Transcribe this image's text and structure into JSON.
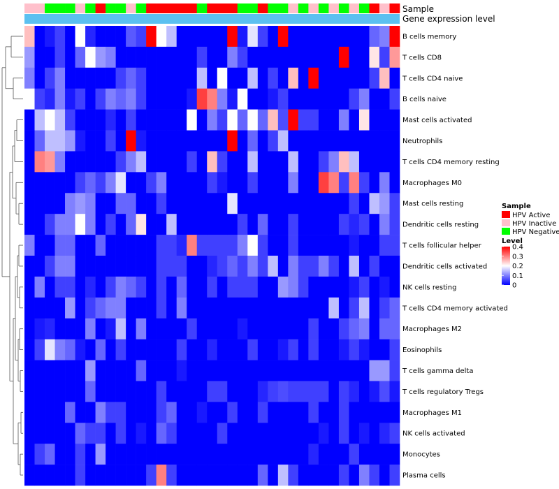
{
  "chart_data": {
    "type": "heatmap",
    "title": "",
    "annotations": {
      "sample_label": "Sample",
      "gene_label": "Gene expression level"
    },
    "colors": {
      "hpv_active": "#ff0000",
      "hpv_inactive": "#ffc0cb",
      "hpv_negative": "#00ff00",
      "gene_bar": "#5bc0f0",
      "low": "#0000ff",
      "mid": "#ffffff",
      "high": "#ff0000"
    },
    "legend": {
      "position": "right",
      "sample_title": "Sample",
      "sample_items": [
        {
          "label": "HPV Active",
          "key": "A"
        },
        {
          "label": "HPV Inactive",
          "key": "I"
        },
        {
          "label": "HPV Negative",
          "key": "N"
        }
      ],
      "level_title": "Level",
      "level_ticks": [
        {
          "value": 0.4,
          "label": "0.4"
        },
        {
          "value": 0.3,
          "label": "0.3"
        },
        {
          "value": 0.2,
          "label": "0.2"
        },
        {
          "value": 0.1,
          "label": "0.1"
        },
        {
          "value": 0,
          "label": "0"
        }
      ],
      "range": [
        0,
        0.4
      ]
    },
    "sample_groups": [
      "I",
      "I",
      "N",
      "N",
      "N",
      "I",
      "N",
      "A",
      "N",
      "N",
      "I",
      "N",
      "A",
      "A",
      "A",
      "A",
      "A",
      "N",
      "A",
      "A",
      "A",
      "N",
      "N",
      "A",
      "N",
      "N",
      "I",
      "N",
      "I",
      "N",
      "I",
      "N",
      "I",
      "N",
      "A",
      "I",
      "A"
    ],
    "rows": [
      {
        "label": "B cells memory",
        "values": [
          0.25,
          0,
          0.02,
          0.05,
          0,
          0.2,
          0.03,
          0,
          0,
          0,
          0.07,
          0.05,
          0.4,
          0.2,
          0.15,
          0,
          0,
          0,
          0,
          0,
          0.4,
          0.02,
          0.18,
          0.05,
          0,
          0.4,
          0,
          0,
          0,
          0,
          0,
          0,
          0,
          0,
          0.08,
          0.1,
          0.4
        ]
      },
      {
        "label": "T cells CD8",
        "values": [
          0.12,
          0,
          0,
          0.05,
          0,
          0.08,
          0.2,
          0.12,
          0.1,
          0,
          0,
          0,
          0,
          0,
          0,
          0,
          0,
          0.05,
          0,
          0,
          0.1,
          0.05,
          0,
          0,
          0,
          0,
          0,
          0,
          0,
          0,
          0,
          0.4,
          0,
          0,
          0.22,
          0.05,
          0.28
        ]
      },
      {
        "label": "T cells CD4 naive",
        "values": [
          0.1,
          0,
          0.05,
          0.1,
          0,
          0,
          0,
          0,
          0,
          0.05,
          0.08,
          0.05,
          0,
          0,
          0,
          0,
          0,
          0.15,
          0,
          0.2,
          0,
          0,
          0.15,
          0,
          0.05,
          0,
          0.25,
          0,
          0.4,
          0,
          0,
          0,
          0,
          0,
          0.05,
          0.25,
          0
        ]
      },
      {
        "label": "B cells naive",
        "values": [
          0.2,
          0.05,
          0.03,
          0.1,
          0.02,
          0.05,
          0,
          0.05,
          0.1,
          0.08,
          0.1,
          0.05,
          0,
          0,
          0,
          0,
          0.02,
          0.35,
          0.3,
          0.1,
          0.02,
          0.2,
          0,
          0,
          0.02,
          0.05,
          0,
          0,
          0,
          0,
          0,
          0,
          0.05,
          0.1,
          0,
          0,
          0.05
        ]
      },
      {
        "label": "Mast cells activated",
        "values": [
          0,
          0.15,
          0.2,
          0.15,
          0.05,
          0,
          0,
          0,
          0.03,
          0,
          0.05,
          0,
          0,
          0,
          0,
          0,
          0.2,
          0,
          0.1,
          0.05,
          0.2,
          0.08,
          0.2,
          0.08,
          0.25,
          0.06,
          0.4,
          0.05,
          0.05,
          0,
          0,
          0.1,
          0,
          0.22,
          0,
          0,
          0
        ]
      },
      {
        "label": "Neutrophils",
        "values": [
          0,
          0.08,
          0.15,
          0.15,
          0.12,
          0.02,
          0,
          0,
          0.05,
          0,
          0.4,
          0.02,
          0,
          0,
          0,
          0,
          0,
          0,
          0,
          0,
          0.4,
          0,
          0.08,
          0,
          0.05,
          0.15,
          0,
          0,
          0,
          0,
          0,
          0,
          0,
          0,
          0,
          0,
          0
        ]
      },
      {
        "label": "T cells CD4 memory resting",
        "values": [
          0,
          0.3,
          0.28,
          0.1,
          0,
          0,
          0,
          0,
          0,
          0.05,
          0.1,
          0.15,
          0,
          0,
          0,
          0,
          0.05,
          0,
          0.25,
          0.05,
          0,
          0,
          0.15,
          0,
          0,
          0,
          0.15,
          0,
          0,
          0.05,
          0.1,
          0.25,
          0.15,
          0,
          0,
          0,
          0
        ]
      },
      {
        "label": "Macrophages M0",
        "values": [
          0,
          0,
          0,
          0,
          0,
          0.05,
          0.08,
          0.05,
          0.1,
          0.18,
          0,
          0,
          0.05,
          0.1,
          0,
          0,
          0,
          0,
          0.05,
          0.02,
          0,
          0,
          0.05,
          0,
          0,
          0,
          0.1,
          0,
          0,
          0.35,
          0.3,
          0.05,
          0.3,
          0.05,
          0,
          0.1,
          0
        ]
      },
      {
        "label": "Mast cells resting",
        "values": [
          0,
          0,
          0,
          0,
          0.1,
          0.12,
          0.1,
          0,
          0,
          0.08,
          0.08,
          0,
          0,
          0.05,
          0,
          0,
          0,
          0,
          0,
          0,
          0.18,
          0,
          0,
          0,
          0,
          0,
          0,
          0,
          0,
          0,
          0,
          0,
          0.05,
          0,
          0.15,
          0.12,
          0.05
        ]
      },
      {
        "label": "Dendritic cells resting",
        "values": [
          0,
          0,
          0.05,
          0.1,
          0.1,
          0.2,
          0.1,
          0,
          0.05,
          0,
          0.08,
          0.22,
          0,
          0,
          0.15,
          0,
          0,
          0,
          0,
          0,
          0,
          0.05,
          0,
          0.08,
          0,
          0,
          0.05,
          0,
          0,
          0,
          0,
          0.05,
          0.03,
          0.05,
          0,
          0.1,
          0.05
        ]
      },
      {
        "label": "T cells follicular helper",
        "values": [
          0.1,
          0,
          0,
          0.08,
          0.08,
          0,
          0,
          0.08,
          0,
          0,
          0,
          0,
          0,
          0.05,
          0.05,
          0.03,
          0.3,
          0.05,
          0.05,
          0.05,
          0.05,
          0.1,
          0.2,
          0.05,
          0,
          0,
          0.05,
          0,
          0,
          0,
          0,
          0,
          0.02,
          0,
          0,
          0.05,
          0.05
        ]
      },
      {
        "label": "Dendritic cells activated",
        "values": [
          0,
          0,
          0.05,
          0.1,
          0.1,
          0,
          0,
          0,
          0,
          0,
          0,
          0,
          0,
          0.05,
          0.05,
          0.05,
          0,
          0,
          0.03,
          0.05,
          0.08,
          0.05,
          0.1,
          0.05,
          0.15,
          0,
          0.1,
          0.05,
          0.05,
          0.1,
          0.05,
          0,
          0.15,
          0,
          0.05,
          0,
          0
        ]
      },
      {
        "label": "NK cells resting",
        "values": [
          0,
          0.1,
          0,
          0.05,
          0.05,
          0,
          0.03,
          0,
          0.05,
          0.1,
          0.08,
          0.05,
          0,
          0.05,
          0,
          0.08,
          0,
          0,
          0.05,
          0,
          0.05,
          0.05,
          0.05,
          0,
          0,
          0.12,
          0.1,
          0.05,
          0,
          0,
          0,
          0,
          0.02,
          0.05,
          0,
          0.02,
          0
        ]
      },
      {
        "label": "T cells CD4 memory activated",
        "values": [
          0,
          0,
          0,
          0,
          0.12,
          0,
          0.05,
          0.08,
          0.1,
          0.1,
          0,
          0,
          0,
          0.05,
          0,
          0.1,
          0,
          0,
          0,
          0,
          0,
          0,
          0,
          0,
          0,
          0,
          0,
          0,
          0,
          0,
          0.15,
          0,
          0.05,
          0.15,
          0,
          0.05,
          0.08
        ]
      },
      {
        "label": "Macrophages M2",
        "values": [
          0,
          0.02,
          0.03,
          0,
          0,
          0,
          0.1,
          0,
          0.02,
          0.15,
          0,
          0.1,
          0,
          0,
          0,
          0,
          0.05,
          0,
          0,
          0,
          0,
          0.02,
          0,
          0,
          0,
          0,
          0,
          0,
          0.05,
          0,
          0,
          0.05,
          0.08,
          0.1,
          0,
          0.08,
          0.08
        ]
      },
      {
        "label": "Eosinophils",
        "values": [
          0,
          0.05,
          0.18,
          0.1,
          0.08,
          0.02,
          0,
          0.08,
          0,
          0.05,
          0,
          0,
          0,
          0,
          0,
          0.05,
          0,
          0,
          0.03,
          0,
          0,
          0,
          0.05,
          0,
          0,
          0.02,
          0.05,
          0,
          0.05,
          0,
          0,
          0.02,
          0.05,
          0.02,
          0,
          0,
          0.05
        ]
      },
      {
        "label": "T cells gamma delta",
        "values": [
          0,
          0,
          0,
          0,
          0,
          0,
          0.12,
          0,
          0,
          0,
          0,
          0.08,
          0,
          0,
          0,
          0.02,
          0,
          0,
          0,
          0,
          0,
          0,
          0,
          0,
          0,
          0,
          0,
          0,
          0,
          0,
          0,
          0,
          0,
          0,
          0.12,
          0.12,
          0.05
        ]
      },
      {
        "label": "T cells regulatory  Tregs",
        "values": [
          0,
          0,
          0,
          0,
          0,
          0,
          0.08,
          0,
          0,
          0,
          0,
          0,
          0,
          0.05,
          0,
          0,
          0,
          0,
          0.05,
          0.05,
          0,
          0,
          0,
          0.03,
          0.05,
          0.06,
          0.05,
          0.05,
          0.05,
          0.05,
          0,
          0.05,
          0.03,
          0,
          0.02,
          0.06,
          0.02
        ]
      },
      {
        "label": "Macrophages M1",
        "values": [
          0,
          0,
          0,
          0,
          0.08,
          0,
          0,
          0.1,
          0.05,
          0.05,
          0,
          0,
          0,
          0.05,
          0.08,
          0,
          0,
          0.02,
          0,
          0,
          0.05,
          0,
          0,
          0.05,
          0,
          0,
          0,
          0,
          0.05,
          0,
          0,
          0.05,
          0,
          0,
          0,
          0,
          0
        ]
      },
      {
        "label": "NK cells activated",
        "values": [
          0,
          0,
          0,
          0,
          0,
          0.08,
          0.05,
          0.05,
          0,
          0.05,
          0,
          0.02,
          0,
          0.08,
          0.05,
          0,
          0,
          0,
          0,
          0.05,
          0,
          0,
          0,
          0,
          0,
          0,
          0,
          0,
          0,
          0.02,
          0,
          0.05,
          0,
          0.02,
          0,
          0.03,
          0.05
        ]
      },
      {
        "label": "Monocytes",
        "values": [
          0,
          0.05,
          0.08,
          0,
          0,
          0.05,
          0,
          0.12,
          0,
          0,
          0,
          0,
          0,
          0,
          0,
          0,
          0,
          0,
          0,
          0,
          0,
          0,
          0,
          0,
          0,
          0,
          0,
          0,
          0.03,
          0,
          0,
          0,
          0.05,
          0,
          0,
          0,
          0
        ]
      },
      {
        "label": "Plasma cells",
        "values": [
          0,
          0,
          0,
          0,
          0,
          0.05,
          0,
          0,
          0,
          0,
          0,
          0,
          0.05,
          0.3,
          0.05,
          0,
          0,
          0,
          0,
          0,
          0,
          0,
          0,
          0.08,
          0,
          0.15,
          0.05,
          0,
          0,
          0,
          0,
          0.05,
          0,
          0.1,
          0.05,
          0,
          0.05
        ]
      }
    ]
  }
}
